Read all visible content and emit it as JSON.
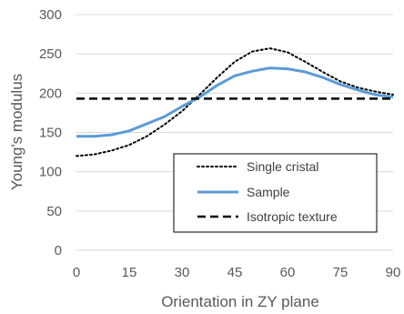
{
  "chart_data": {
    "type": "line",
    "title": "",
    "xlabel": "Orientation  in ZY plane",
    "ylabel": "Young's modulus",
    "xlim": [
      0,
      90
    ],
    "ylim": [
      0,
      300
    ],
    "x_ticks": [
      "0",
      "15",
      "30",
      "45",
      "60",
      "75",
      "90"
    ],
    "y_ticks": [
      "0",
      "50",
      "100",
      "150",
      "200",
      "250",
      "300"
    ],
    "grid": "horizontal",
    "legend_position": "bottom-right",
    "series": [
      {
        "name": "Single cristal",
        "style": "dotted",
        "color": "#000000",
        "x": [
          0,
          5,
          10,
          15,
          20,
          25,
          30,
          35,
          40,
          45,
          50,
          55,
          60,
          65,
          70,
          75,
          80,
          85,
          90
        ],
        "y": [
          120,
          122,
          127,
          134,
          145,
          160,
          177,
          198,
          220,
          240,
          253,
          257,
          252,
          240,
          227,
          215,
          207,
          202,
          198
        ]
      },
      {
        "name": "Sample",
        "style": "solid",
        "color": "#5b9bd5",
        "x": [
          0,
          5,
          10,
          15,
          20,
          25,
          30,
          35,
          40,
          45,
          50,
          55,
          60,
          65,
          70,
          75,
          80,
          85,
          90
        ],
        "y": [
          145,
          145,
          147,
          152,
          161,
          170,
          183,
          195,
          210,
          222,
          228,
          232,
          231,
          227,
          220,
          211,
          204,
          198,
          195
        ]
      },
      {
        "name": "Isotropic texture",
        "style": "dashed",
        "color": "#000000",
        "x": [
          0,
          90
        ],
        "y": [
          193,
          193
        ]
      }
    ]
  }
}
